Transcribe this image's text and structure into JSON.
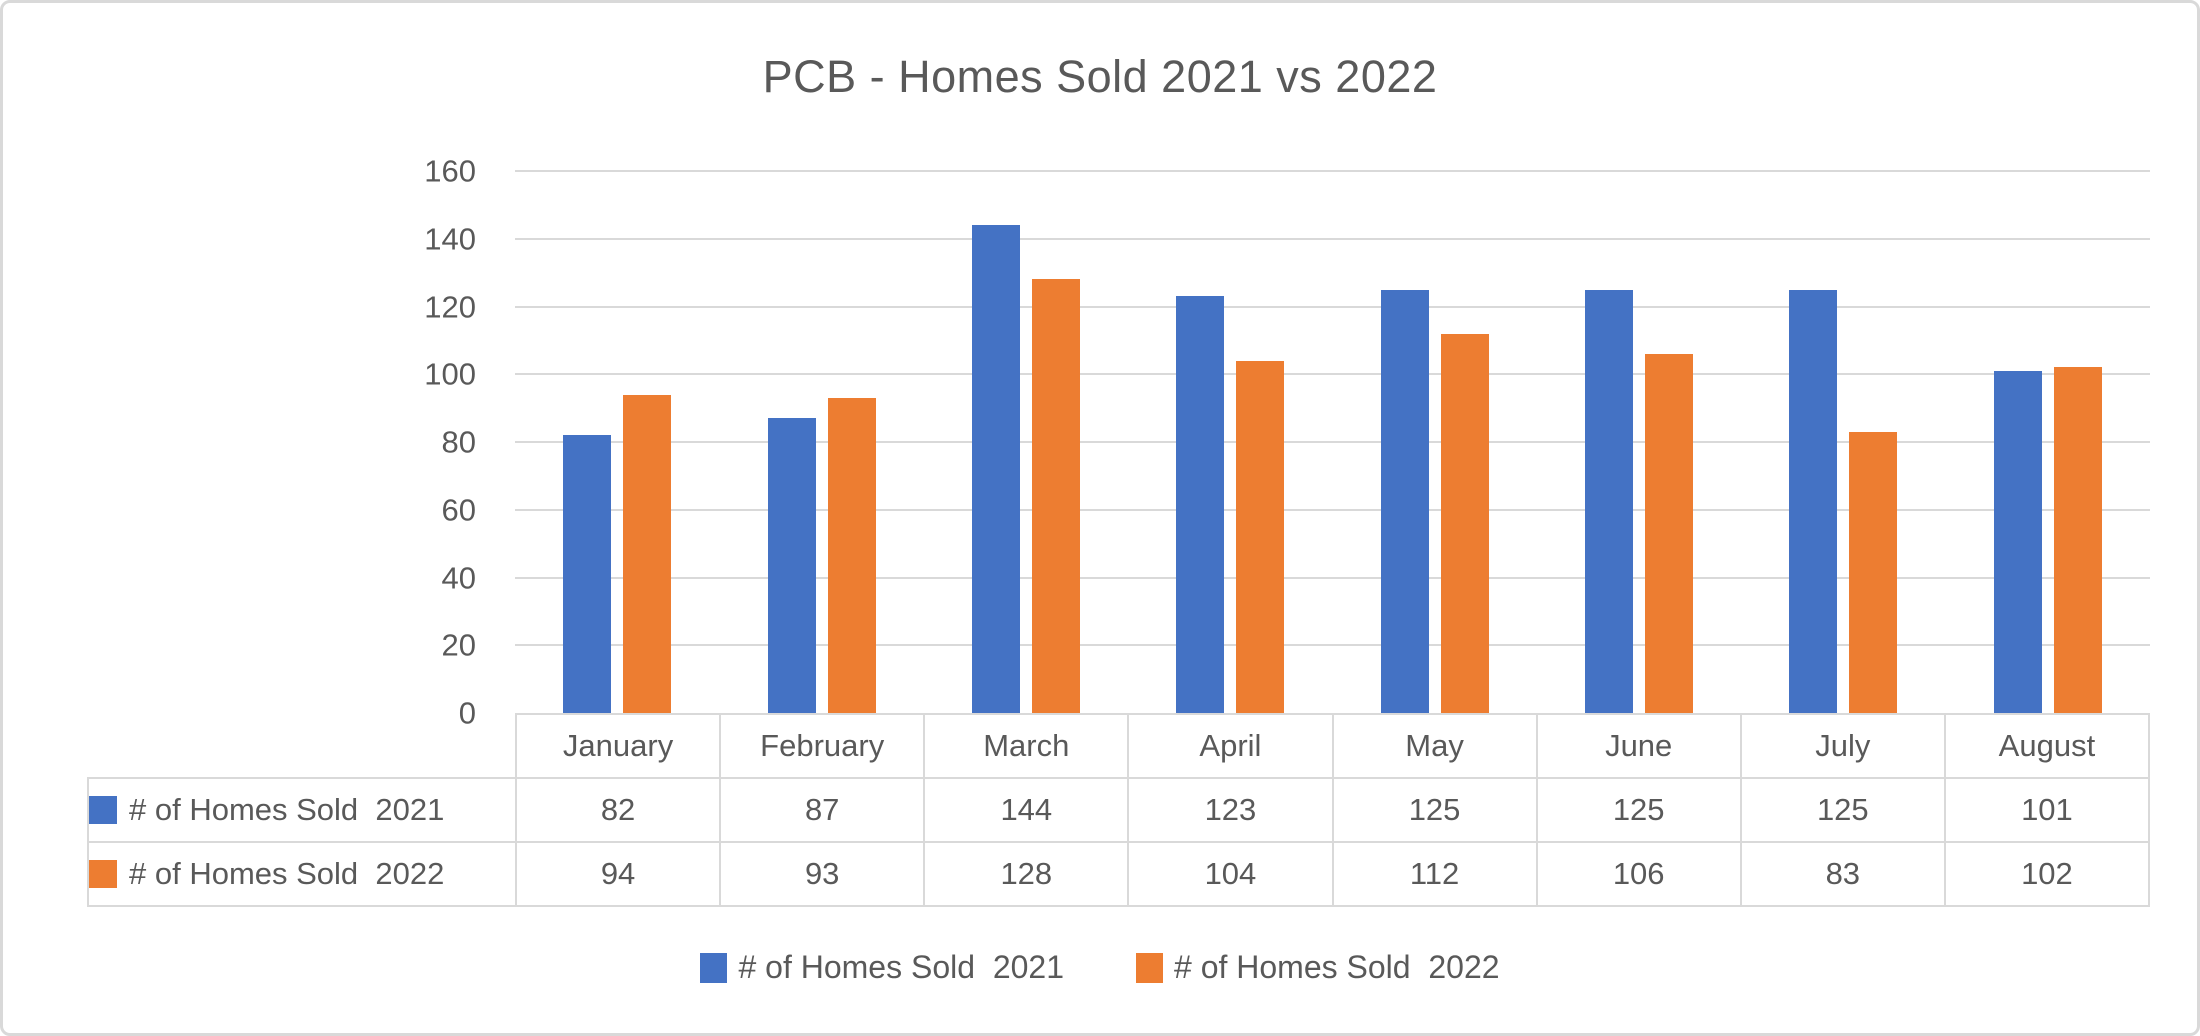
{
  "title": "PCB - Homes Sold 2021 vs 2022",
  "colors": {
    "series_2021": "#4472C4",
    "series_2022": "#ED7D31",
    "gridline": "#D9D9D9",
    "text": "#595959",
    "frame_border": "#D9D9D9"
  },
  "chart_data": {
    "type": "bar",
    "title": "PCB - Homes Sold 2021 vs 2022",
    "categories": [
      "January",
      "February",
      "March",
      "April",
      "May",
      "June",
      "July",
      "August"
    ],
    "series": [
      {
        "name": "# of Homes Sold  2021",
        "key": "2021",
        "color": "#4472C4",
        "values": [
          82,
          87,
          144,
          123,
          125,
          125,
          125,
          101
        ]
      },
      {
        "name": "# of Homes Sold  2022",
        "key": "2022",
        "color": "#ED7D31",
        "values": [
          94,
          93,
          128,
          104,
          112,
          106,
          83,
          102
        ]
      }
    ],
    "ylim": [
      0,
      160
    ],
    "yticks": [
      0,
      20,
      40,
      60,
      80,
      100,
      120,
      140,
      160
    ],
    "grid": true,
    "legend_position": "bottom",
    "data_table_shown": true
  },
  "legend": {
    "items": [
      {
        "label": "# of Homes Sold  2021",
        "key": "2021",
        "color": "#4472C4"
      },
      {
        "label": "# of Homes Sold  2022",
        "key": "2022",
        "color": "#ED7D31"
      }
    ]
  }
}
